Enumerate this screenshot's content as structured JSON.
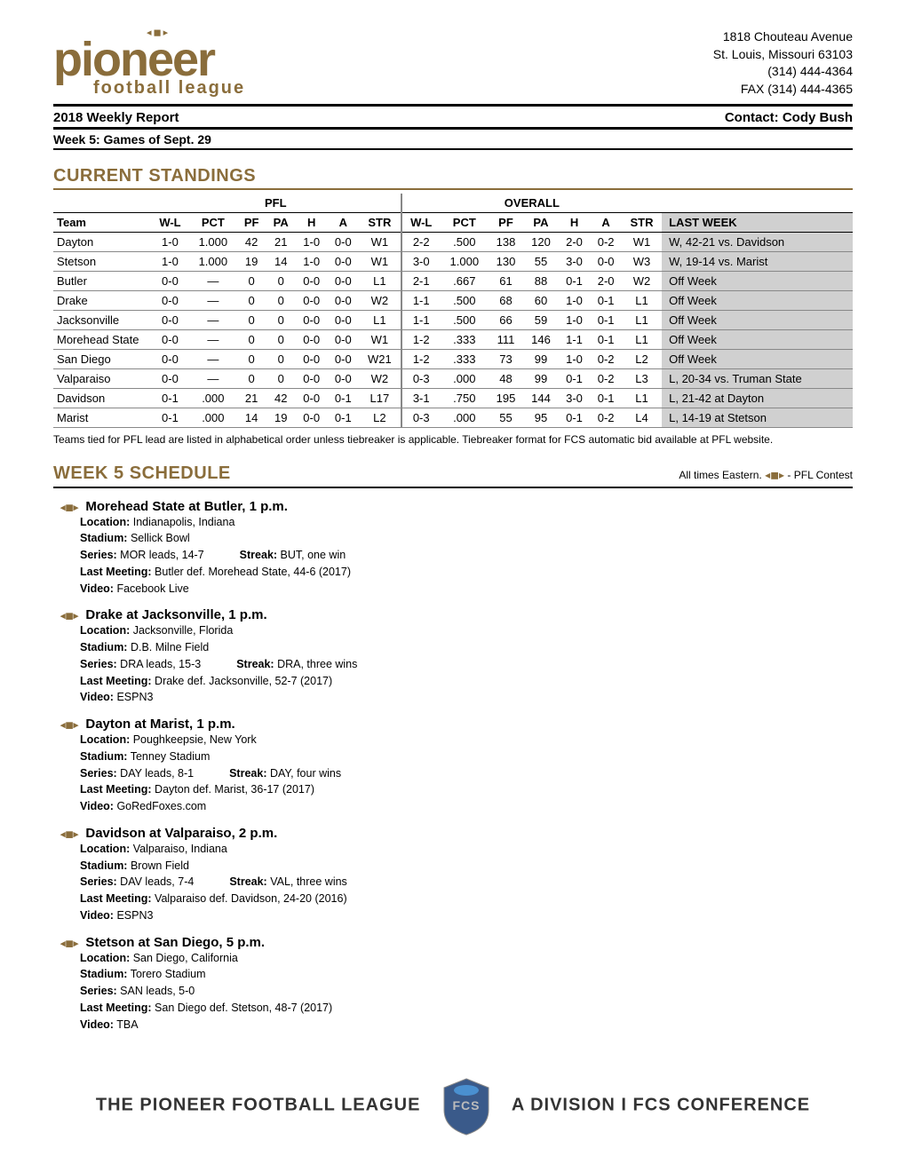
{
  "org": {
    "address1": "1818 Chouteau Avenue",
    "address2": "St. Louis, Missouri 63103",
    "phone": "(314) 444-4364",
    "fax": "FAX (314) 444-4365"
  },
  "report_title": "2018 Weekly Report",
  "contact": "Contact: Cody Bush",
  "week_label": "Week 5: Games of Sept. 29",
  "standings_title": "CURRENT STANDINGS",
  "standings_note": "Teams tied for PFL lead are listed in alphabetical order unless tiebreaker is applicable. Tiebreaker format for FCS automatic bid available at PFL website.",
  "group_headers": {
    "pfl": "PFL",
    "overall": "OVERALL"
  },
  "columns": [
    "Team",
    "W-L",
    "PCT",
    "PF",
    "PA",
    "H",
    "A",
    "STR",
    "W-L",
    "PCT",
    "PF",
    "PA",
    "H",
    "A",
    "STR",
    "LAST WEEK"
  ],
  "rows": [
    {
      "team": "Dayton",
      "pfl": [
        "1-0",
        "1.000",
        "42",
        "21",
        "1-0",
        "0-0",
        "W1"
      ],
      "ovr": [
        "2-2",
        ".500",
        "138",
        "120",
        "2-0",
        "0-2",
        "W1"
      ],
      "last": "W, 42-21 vs. Davidson"
    },
    {
      "team": "Stetson",
      "pfl": [
        "1-0",
        "1.000",
        "19",
        "14",
        "1-0",
        "0-0",
        "W1"
      ],
      "ovr": [
        "3-0",
        "1.000",
        "130",
        "55",
        "3-0",
        "0-0",
        "W3"
      ],
      "last": "W, 19-14 vs. Marist"
    },
    {
      "team": "Butler",
      "pfl": [
        "0-0",
        "—",
        "0",
        "0",
        "0-0",
        "0-0",
        "L1"
      ],
      "ovr": [
        "2-1",
        ".667",
        "61",
        "88",
        "0-1",
        "2-0",
        "W2"
      ],
      "last": "Off Week"
    },
    {
      "team": "Drake",
      "pfl": [
        "0-0",
        "—",
        "0",
        "0",
        "0-0",
        "0-0",
        "W2"
      ],
      "ovr": [
        "1-1",
        ".500",
        "68",
        "60",
        "1-0",
        "0-1",
        "L1"
      ],
      "last": "Off Week"
    },
    {
      "team": "Jacksonville",
      "pfl": [
        "0-0",
        "—",
        "0",
        "0",
        "0-0",
        "0-0",
        "L1"
      ],
      "ovr": [
        "1-1",
        ".500",
        "66",
        "59",
        "1-0",
        "0-1",
        "L1"
      ],
      "last": "Off Week"
    },
    {
      "team": "Morehead State",
      "pfl": [
        "0-0",
        "—",
        "0",
        "0",
        "0-0",
        "0-0",
        "W1"
      ],
      "ovr": [
        "1-2",
        ".333",
        "111",
        "146",
        "1-1",
        "0-1",
        "L1"
      ],
      "last": "Off Week"
    },
    {
      "team": "San Diego",
      "pfl": [
        "0-0",
        "—",
        "0",
        "0",
        "0-0",
        "0-0",
        "W21"
      ],
      "ovr": [
        "1-2",
        ".333",
        "73",
        "99",
        "1-0",
        "0-2",
        "L2"
      ],
      "last": "Off Week"
    },
    {
      "team": "Valparaiso",
      "pfl": [
        "0-0",
        "—",
        "0",
        "0",
        "0-0",
        "0-0",
        "W2"
      ],
      "ovr": [
        "0-3",
        ".000",
        "48",
        "99",
        "0-1",
        "0-2",
        "L3"
      ],
      "last": "L, 20-34 vs. Truman State"
    },
    {
      "team": "Davidson",
      "pfl": [
        "0-1",
        ".000",
        "21",
        "42",
        "0-0",
        "0-1",
        "L17"
      ],
      "ovr": [
        "3-1",
        ".750",
        "195",
        "144",
        "3-0",
        "0-1",
        "L1"
      ],
      "last": "L, 21-42 at Dayton"
    },
    {
      "team": "Marist",
      "pfl": [
        "0-1",
        ".000",
        "14",
        "19",
        "0-0",
        "0-1",
        "L2"
      ],
      "ovr": [
        "0-3",
        ".000",
        "55",
        "95",
        "0-1",
        "0-2",
        "L4"
      ],
      "last": "L, 14-19 at Stetson"
    }
  ],
  "schedule_title": "WEEK 5 SCHEDULE",
  "tz_note": "All times Eastern.",
  "pfl_suffix": " - PFL Contest",
  "games": [
    {
      "title": "Morehead State at Butler, 1 p.m.",
      "location": "Indianapolis, Indiana",
      "stadium": "Sellick Bowl",
      "series": "MOR leads, 14-7",
      "streak": "BUT, one win",
      "last": "Butler def. Morehead State, 44-6 (2017)",
      "video": "Facebook Live"
    },
    {
      "title": "Drake at Jacksonville, 1 p.m.",
      "location": "Jacksonville, Florida",
      "stadium": "D.B. Milne Field",
      "series": "DRA leads, 15-3",
      "streak": "DRA, three wins",
      "last": "Drake def. Jacksonville, 52-7 (2017)",
      "video": "ESPN3"
    },
    {
      "title": "Dayton at Marist, 1 p.m.",
      "location": "Poughkeepsie, New York",
      "stadium": "Tenney Stadium",
      "series": "DAY leads, 8-1",
      "streak": "DAY, four wins",
      "last": "Dayton def. Marist, 36-17 (2017)",
      "video": "GoRedFoxes.com"
    },
    {
      "title": "Davidson at Valparaiso, 2 p.m.",
      "location": "Valparaiso, Indiana",
      "stadium": "Brown Field",
      "series": "DAV leads, 7-4",
      "streak": "VAL, three wins",
      "last": "Valparaiso def. Davidson, 24-20 (2016)",
      "video": "ESPN3"
    },
    {
      "title": "Stetson at San Diego, 5 p.m.",
      "location": "San Diego, California",
      "stadium": "Torero Stadium",
      "series": "SAN leads, 5-0",
      "streak": "",
      "last": "San Diego def. Stetson, 48-7 (2017)",
      "video": "TBA"
    }
  ],
  "footer_left": "THE PIONEER FOOTBALL LEAGUE",
  "footer_right": "A DIVISION I FCS CONFERENCE"
}
